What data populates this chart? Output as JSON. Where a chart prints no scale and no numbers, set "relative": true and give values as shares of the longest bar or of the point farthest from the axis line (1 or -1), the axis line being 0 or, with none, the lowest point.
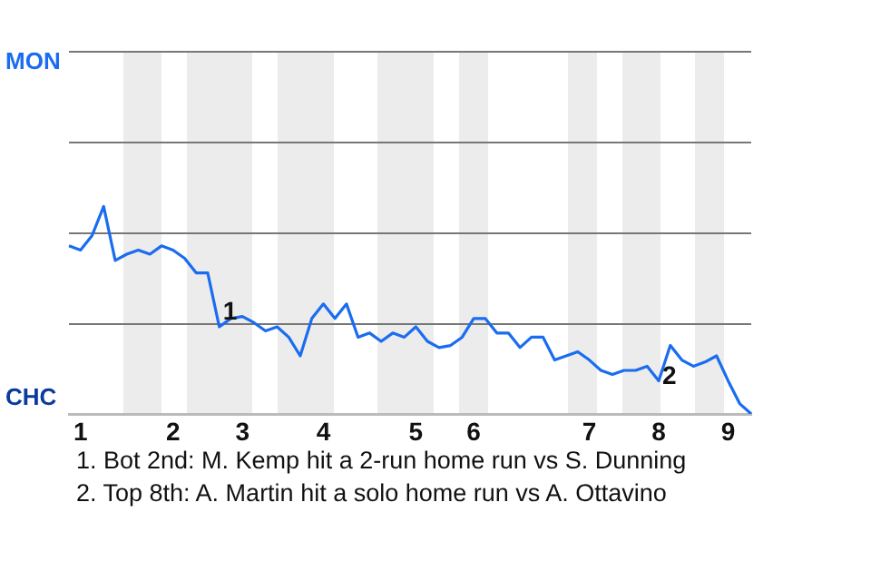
{
  "chart_data": {
    "type": "line",
    "relative": true,
    "categories": [
      null,
      "1",
      null,
      null,
      null,
      null,
      null,
      null,
      null,
      "2",
      null,
      null,
      null,
      null,
      null,
      "3",
      null,
      null,
      null,
      null,
      null,
      null,
      "4",
      null,
      null,
      null,
      null,
      null,
      null,
      null,
      "5",
      null,
      null,
      null,
      null,
      "6",
      null,
      null,
      null,
      null,
      null,
      null,
      null,
      null,
      null,
      "7",
      null,
      null,
      null,
      null,
      null,
      "8",
      null,
      null,
      null,
      null,
      null,
      "9",
      null,
      null
    ],
    "series": [
      {
        "color": "#1a6cf0",
        "values": [
          0.81,
          0.79,
          0.86,
          1,
          0.74,
          0.77,
          0.79,
          0.77,
          0.81,
          0.79,
          0.75,
          0.68,
          0.68,
          0.42,
          0.46,
          0.47,
          0.44,
          0.4,
          0.42,
          0.37,
          0.28,
          0.46,
          0.53,
          0.46,
          0.53,
          0.37,
          0.39,
          0.35,
          0.39,
          0.37,
          0.42,
          0.35,
          0.32,
          0.33,
          0.37,
          0.46,
          0.46,
          0.39,
          0.39,
          0.32,
          0.37,
          0.37,
          0.26,
          0.28,
          0.3,
          0.26,
          0.21,
          0.19,
          0.21,
          0.21,
          0.23,
          0.16,
          0.33,
          0.26,
          0.23,
          0.25,
          0.28,
          0.16,
          0.05,
          0
        ]
      }
    ],
    "annotations": [
      "MON",
      "CHC",
      {
        "text": "1",
        "y": 0.42
      },
      {
        "text": "2",
        "y": 0.16
      },
      "1. Bot 2nd: M. Kemp hit a 2-run home run vs S. Dunning",
      "2. Top 8th: A. Martin hit a solo home run vs A. Ottavino"
    ],
    "ref_lines": [
      {
        "axis": "y",
        "value": 0.4375,
        "color": "#777777"
      },
      {
        "axis": "y",
        "value": 0.875,
        "color": "#777777"
      },
      {
        "axis": "y",
        "value": 1.3125,
        "color": "#777777"
      },
      {
        "axis": "y",
        "value": 1.75,
        "color": "#777777"
      }
    ],
    "legend": false,
    "marker": "none",
    "line_style": "solid"
  }
}
